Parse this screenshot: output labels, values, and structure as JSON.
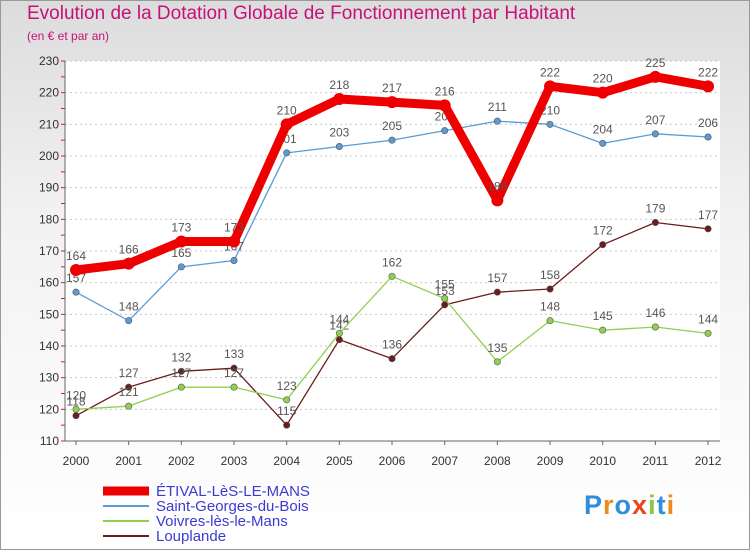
{
  "title": "Evolution de la Dotation Globale de Fonctionnement par Habitant",
  "subtitle": "(en € et par an)",
  "logo": {
    "text": "Proxiti",
    "colors": [
      "#2f8fdc",
      "#f08a1c",
      "#2f8fdc",
      "#e8461c",
      "#8cc63f",
      "#2f8fdc",
      "#f08a1c"
    ]
  },
  "chart_data": {
    "type": "line",
    "title": "Evolution de la Dotation Globale de Fonctionnement par Habitant",
    "ylabel": "",
    "xlabel": "",
    "ylim": [
      110,
      230
    ],
    "yticks": [
      110,
      120,
      130,
      140,
      150,
      160,
      170,
      180,
      190,
      200,
      210,
      220,
      230
    ],
    "grid": "horizontal dotted",
    "x": [
      "2000",
      "2001",
      "2002",
      "2003",
      "2004",
      "2005",
      "2006",
      "2007",
      "2008",
      "2009",
      "2010",
      "2011",
      "2012"
    ],
    "series": [
      {
        "name": "ÉTIVAL-LèS-LE-MANS",
        "color": "#ee0000",
        "values": [
          164,
          166,
          173,
          173,
          210,
          218,
          217,
          216,
          186,
          222,
          220,
          225,
          222
        ]
      },
      {
        "name": "Saint-Georges-du-Bois",
        "color": "#5b9bd5",
        "values": [
          157,
          148,
          165,
          167,
          201,
          203,
          205,
          208,
          211,
          210,
          204,
          207,
          206
        ]
      },
      {
        "name": "Voivres-lès-le-Mans",
        "color": "#8fd14f",
        "values": [
          120,
          121,
          127,
          127,
          123,
          144,
          162,
          155,
          135,
          148,
          145,
          146,
          144
        ]
      },
      {
        "name": "Louplande",
        "color": "#6b1c1c",
        "values": [
          118,
          127,
          132,
          133,
          115,
          142,
          136,
          153,
          157,
          158,
          172,
          179,
          177
        ]
      }
    ]
  }
}
